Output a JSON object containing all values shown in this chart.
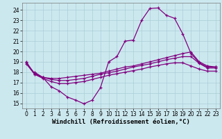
{
  "xlabel": "Windchill (Refroidissement éolien,°C)",
  "bg_color": "#cce8ef",
  "line_color": "#800080",
  "grid_color": "#aacdd6",
  "xlim": [
    -0.5,
    23.5
  ],
  "ylim": [
    14.5,
    24.7
  ],
  "xticks": [
    0,
    1,
    2,
    3,
    4,
    5,
    6,
    7,
    8,
    9,
    10,
    11,
    12,
    13,
    14,
    15,
    16,
    17,
    18,
    19,
    20,
    21,
    22,
    23
  ],
  "yticks": [
    15,
    16,
    17,
    18,
    19,
    20,
    21,
    22,
    23,
    24
  ],
  "line1_x": [
    0,
    1,
    2,
    3,
    4,
    5,
    6,
    7,
    8,
    9,
    10,
    11,
    12,
    13,
    14,
    15,
    16,
    17,
    18,
    19,
    20,
    21,
    22,
    23
  ],
  "line1_y": [
    19.0,
    17.8,
    17.5,
    16.6,
    16.2,
    15.6,
    15.3,
    14.95,
    15.3,
    16.5,
    19.0,
    19.5,
    21.0,
    21.1,
    23.0,
    24.15,
    24.2,
    23.5,
    23.2,
    21.7,
    19.8,
    18.9,
    18.5,
    18.5
  ],
  "line2_x": [
    1,
    2,
    3,
    4,
    5,
    6,
    7,
    8,
    9,
    10,
    11,
    12,
    13,
    14,
    15,
    16,
    17,
    18,
    19,
    20,
    21,
    22,
    23
  ],
  "line2_y": [
    18.0,
    17.5,
    17.4,
    17.4,
    17.5,
    17.6,
    17.7,
    17.8,
    17.9,
    18.1,
    18.3,
    18.5,
    18.6,
    18.8,
    19.0,
    19.2,
    19.4,
    19.6,
    19.8,
    19.95,
    19.0,
    18.6,
    18.5
  ],
  "line3_x": [
    0,
    1,
    2,
    3,
    4,
    5,
    6,
    7,
    8,
    9,
    10,
    11,
    12,
    13,
    14,
    15,
    16,
    17,
    18,
    19,
    20,
    21,
    22,
    23
  ],
  "line3_y": [
    18.9,
    17.9,
    17.5,
    17.3,
    17.2,
    17.2,
    17.3,
    17.4,
    17.6,
    17.8,
    17.95,
    18.1,
    18.3,
    18.5,
    18.65,
    18.8,
    19.0,
    19.2,
    19.35,
    19.5,
    19.5,
    18.85,
    18.4,
    18.4
  ],
  "line4_x": [
    0,
    1,
    2,
    3,
    4,
    5,
    6,
    7,
    8,
    9,
    10,
    11,
    12,
    13,
    14,
    15,
    16,
    17,
    18,
    19,
    20,
    21,
    22,
    23
  ],
  "line4_y": [
    18.8,
    17.8,
    17.4,
    17.1,
    16.9,
    16.9,
    17.0,
    17.1,
    17.3,
    17.5,
    17.7,
    17.85,
    18.0,
    18.15,
    18.3,
    18.5,
    18.65,
    18.8,
    18.9,
    18.9,
    18.6,
    18.3,
    18.1,
    18.1
  ],
  "marker": "+",
  "markersize": 3,
  "linewidth": 0.9,
  "tick_fontsize": 5.5,
  "xlabel_fontsize": 6.5
}
